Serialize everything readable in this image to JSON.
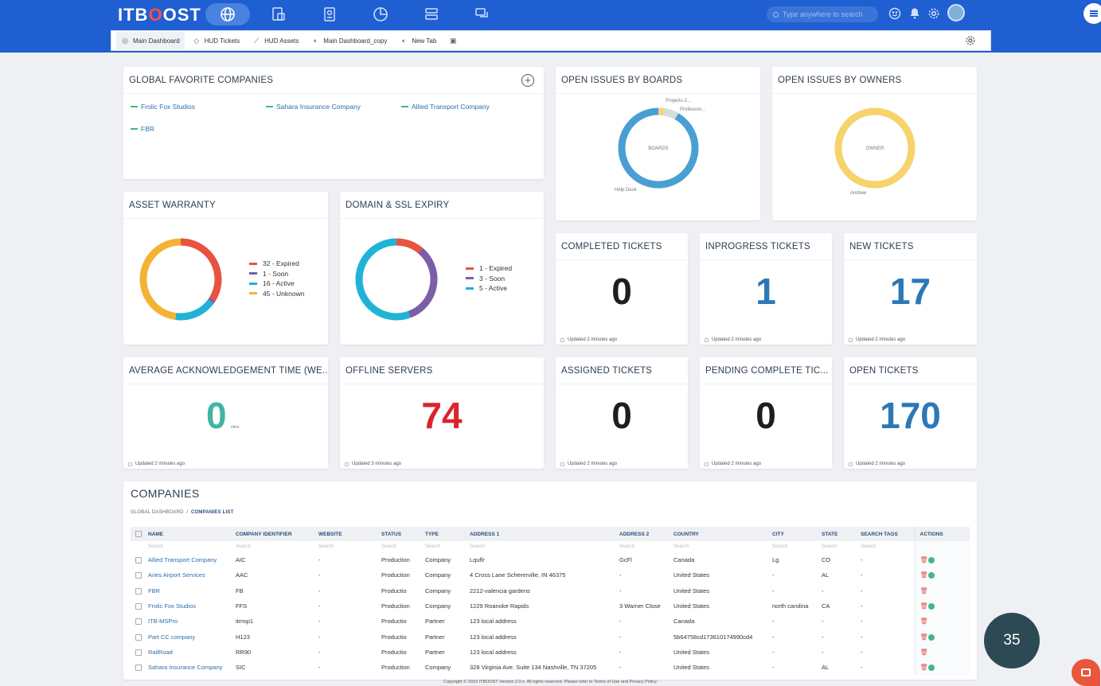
{
  "app": {
    "logo_main": "ITB",
    "logo_o": "O",
    "logo_rest": "OST"
  },
  "topbar": {
    "search_placeholder": "Type anywhere to search",
    "icons": [
      "globe-icon",
      "asset-icon",
      "ticket-icon",
      "pie-chart-icon",
      "server-icon",
      "chat-icon"
    ]
  },
  "tabs": [
    {
      "label": "Main Dashboard",
      "icon": "globe-icon"
    },
    {
      "label": "HUD Tickets",
      "icon": "tag-icon"
    },
    {
      "label": "HUD Assets",
      "icon": "line-icon"
    },
    {
      "label": "Main Dashboard_copy",
      "icon": "half-circle-icon"
    },
    {
      "label": "New Tab",
      "icon": "half-circle-icon"
    }
  ],
  "widgets": {
    "favorites": {
      "title": "GLOBAL FAVORITE COMPANIES",
      "items": [
        "Frolic Fox Studios",
        "Sahara Insurance Company",
        "Allied Transport Company",
        "FBR"
      ]
    },
    "boards": {
      "title": "OPEN ISSUES BY BOARDS",
      "center_label": "BOARDS",
      "label_main": "Help Desk",
      "label_a": "Projects-2...",
      "label_b": "Professon..."
    },
    "owners": {
      "title": "OPEN ISSUES BY OWNERS",
      "center_label": "OWNER",
      "label_main": "Andrew"
    },
    "warranty": {
      "title": "ASSET WARRANTY",
      "legend": [
        "32 - Expired",
        "1 - Soon",
        "16 - Active",
        "45 - Unknown"
      ]
    },
    "domain": {
      "title": "DOMAIN & SSL EXPIRY",
      "legend": [
        "1 - Expired",
        "3 - Soon",
        "5 - Active"
      ]
    },
    "completed": {
      "title": "COMPLETED TICKETS",
      "value": "0",
      "updated": "Updated 2 minutes ago"
    },
    "inprogress": {
      "title": "INPROGRESS TICKETS",
      "value": "1",
      "updated": "Updated 2 minutes ago"
    },
    "new": {
      "title": "NEW TICKETS",
      "value": "17",
      "updated": "Updated 2 minutes ago"
    },
    "ack": {
      "title": "AVERAGE ACKNOWLEDGEMENT TIME (WE...",
      "value": "0",
      "unit": "mins",
      "updated": "Updated 2 minutes ago"
    },
    "offline": {
      "title": "OFFLINE SERVERS",
      "value": "74",
      "updated": "Updated 3 minutes ago"
    },
    "assigned": {
      "title": "ASSIGNED TICKETS",
      "value": "0",
      "updated": "Updated 2 minutes ago"
    },
    "pending": {
      "title": "PENDING COMPLETE TIC...",
      "value": "0",
      "updated": "Updated 2 minutes ago"
    },
    "open": {
      "title": "OPEN TICKETS",
      "value": "170",
      "updated": "Updated 2 minutes ago"
    }
  },
  "chart_data": [
    {
      "type": "pie",
      "title": "ASSET WARRANTY",
      "categories": [
        "Expired",
        "Soon",
        "Active",
        "Unknown"
      ],
      "values": [
        32,
        1,
        16,
        45
      ],
      "colors": [
        "#e8533f",
        "#7b5ea7",
        "#1fb3d6",
        "#f5b335"
      ]
    },
    {
      "type": "pie",
      "title": "DOMAIN & SSL EXPIRY",
      "categories": [
        "Expired",
        "Soon",
        "Active"
      ],
      "values": [
        1,
        3,
        5
      ],
      "colors": [
        "#e8533f",
        "#7b5ea7",
        "#1fb3d6"
      ]
    }
  ],
  "colors": {
    "topbar": "#1f5fd1",
    "blue_number": "#2b78b8",
    "red_number": "#d9262c",
    "teal_number": "#41b5a2",
    "dark_number": "#1e1e1e",
    "boards_ring": "#4a9fd2",
    "owners_ring": "#f6d36b"
  },
  "companies": {
    "title": "COMPANIES",
    "breadcrumb_root": "GLOBAL DASHBOARD",
    "breadcrumb_sep": "/",
    "breadcrumb_current": "COMPANIES LIST",
    "columns": [
      "NAME",
      "COMPANY IDENTIFIER",
      "WEBSITE",
      "STATUS",
      "TYPE",
      "ADDRESS 1",
      "ADDRESS 2",
      "COUNTRY",
      "CITY",
      "STATE",
      "SEARCH TAGS",
      "ACTIONS"
    ],
    "filter_placeholder": "Search",
    "rows": [
      [
        "Allied Transport Company",
        "AIC",
        "-",
        "Production",
        "Company",
        "Lquflr",
        "GcFl",
        "Canada",
        "Lg",
        "CO",
        "-"
      ],
      [
        "Aries Airport Services",
        "AAC",
        "-",
        "Production",
        "Company",
        "4 Cross Lane Schererville, IN 46375",
        "-",
        "United States",
        "-",
        "AL",
        "-"
      ],
      [
        "FBR",
        "FB",
        "-",
        "Productio",
        "Company",
        "2212-valencia gardens",
        "-",
        "United States",
        "-",
        "-",
        "-"
      ],
      [
        "Frolic Fox Studios",
        "FFS",
        "-",
        "Production",
        "Company",
        "1229 Roanoke Rapids",
        "3 Warner Close",
        "United States",
        "north carolina",
        "CA",
        "-"
      ],
      [
        "ITB-MSPro",
        "itmsp1",
        "-",
        "Productio",
        "Partner",
        "123 local address",
        "-",
        "Canada",
        "-",
        "-",
        "-"
      ],
      [
        "Part CC company",
        "H123",
        "-",
        "Productio",
        "Partner",
        "123 local address",
        "-",
        "5b64758cd173610174990cd4",
        "-",
        "-",
        "-"
      ],
      [
        "RailRoad",
        "RR90",
        "-",
        "Productio",
        "Partner",
        "123 local address",
        "-",
        "United States",
        "-",
        "-",
        "-"
      ],
      [
        "Sahara Insurance Company",
        "SIC",
        "-",
        "Production",
        "Company",
        "328 Virginia Ave. Suite 134 Nashville, TN 37205",
        "-",
        "United States",
        "-",
        "AL",
        "-"
      ]
    ],
    "row_actions": [
      true,
      true,
      false,
      true,
      false,
      true,
      false,
      true
    ]
  },
  "footer": "Copyright © 2019 ITBOOST Version 2.0.x. All rights reserved. Please refer to Terms of Use and Privacy Policy.",
  "notification_count": "35"
}
